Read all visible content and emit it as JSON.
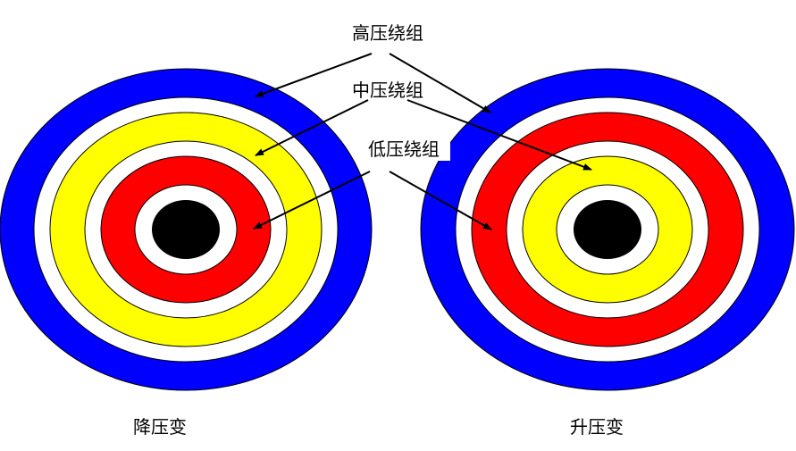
{
  "labels": {
    "high_voltage_winding": "高压绕组",
    "medium_voltage_winding": "中压绕组",
    "low_voltage_winding": "低压绕组",
    "step_down_transformer": "降压变",
    "step_up_transformer": "升压变"
  },
  "colors": {
    "high_voltage": "#0000ff",
    "medium_voltage": "#ffff00",
    "low_voltage": "#ff0000",
    "gap": "#ffffff",
    "core": "#000000",
    "arrow": "#000000"
  },
  "winding_order_from_core": {
    "step_down_transformer": [
      "low_voltage",
      "medium_voltage",
      "high_voltage"
    ],
    "step_up_transformer": [
      "medium_voltage",
      "low_voltage",
      "high_voltage"
    ]
  }
}
